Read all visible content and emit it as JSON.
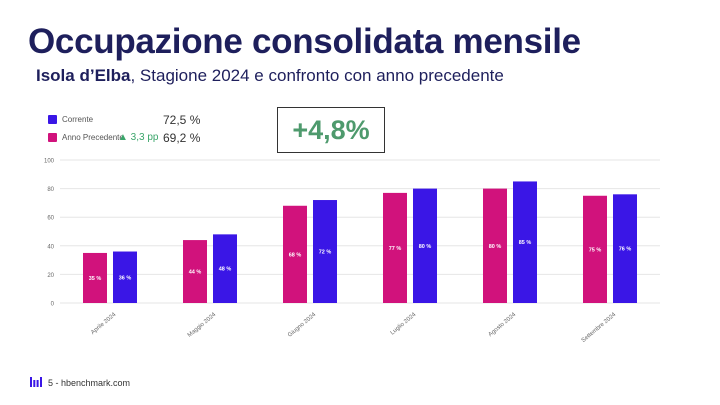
{
  "slide": {
    "title": "Occupazione consolidata mensile",
    "subtitle_bold": "Isola d’Elba",
    "subtitle_rest": ", Stagione 2024 e confronto con anno precedente",
    "highlight": "+4,8%",
    "footer_page": "5",
    "footer_text": "5 - hbenchmark.com"
  },
  "legend": {
    "current": {
      "label": "Corrente",
      "value": "72,5 %"
    },
    "previous": {
      "label": "Anno Precedente",
      "delta": "▲ 3,3 pp",
      "value": "69,2 %"
    }
  },
  "colors": {
    "title": "#1e1f5c",
    "current": "#3a16e6",
    "previous": "#d1127c",
    "highlight": "#4e9a6d",
    "delta": "#3aa56a"
  },
  "chart_data": {
    "type": "bar",
    "categories": [
      "Aprile 2024",
      "Maggio 2024",
      "Giugno 2024",
      "Luglio 2024",
      "Agosto 2024",
      "Settembre 2024"
    ],
    "series": [
      {
        "name": "Anno Precedente",
        "values": [
          35,
          44,
          68,
          77,
          80,
          75
        ],
        "labels": [
          "35 %",
          "44 %",
          "68 %",
          "77 %",
          "80 %",
          "75 %"
        ]
      },
      {
        "name": "Corrente",
        "values": [
          36,
          48,
          72,
          80,
          85,
          76
        ],
        "labels": [
          "36 %",
          "48 %",
          "72 %",
          "80 %",
          "85 %",
          "76 %"
        ]
      }
    ],
    "ylim": [
      0,
      100
    ],
    "yticks": [
      0,
      20,
      40,
      60,
      80,
      100
    ],
    "grid": true,
    "legend": "top-left"
  }
}
